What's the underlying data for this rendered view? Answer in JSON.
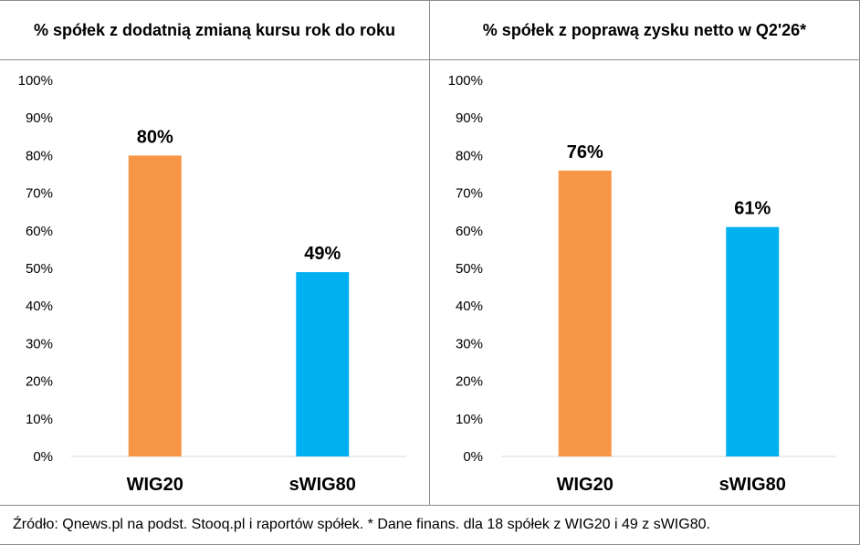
{
  "chart_data": [
    {
      "type": "bar",
      "title": "% spółek z dodatnią zmianą kursu rok do roku",
      "categories": [
        "WIG20",
        "sWIG80"
      ],
      "values": [
        80,
        49
      ],
      "data_labels": [
        "80%",
        "49%"
      ],
      "bar_colors": [
        "#f79646",
        "#00b0f0"
      ],
      "ylim": [
        0,
        100
      ],
      "yticks": [
        "0%",
        "10%",
        "20%",
        "30%",
        "40%",
        "50%",
        "60%",
        "70%",
        "80%",
        "90%",
        "100%"
      ],
      "grid": false,
      "legend": "none"
    },
    {
      "type": "bar",
      "title": "% spółek z poprawą zysku netto w Q2'26*",
      "categories": [
        "WIG20",
        "sWIG80"
      ],
      "values": [
        76,
        61
      ],
      "data_labels": [
        "76%",
        "61%"
      ],
      "bar_colors": [
        "#f79646",
        "#00b0f0"
      ],
      "ylim": [
        0,
        100
      ],
      "yticks": [
        "0%",
        "10%",
        "20%",
        "30%",
        "40%",
        "50%",
        "60%",
        "70%",
        "80%",
        "90%",
        "100%"
      ],
      "grid": false,
      "legend": "none"
    }
  ],
  "footer": {
    "source": "Źródło: Qnews.pl na podst. Stooq.pl i raportów spółek. * Dane finans. dla 18 spółek z WIG20 i 49 z sWIG80."
  }
}
